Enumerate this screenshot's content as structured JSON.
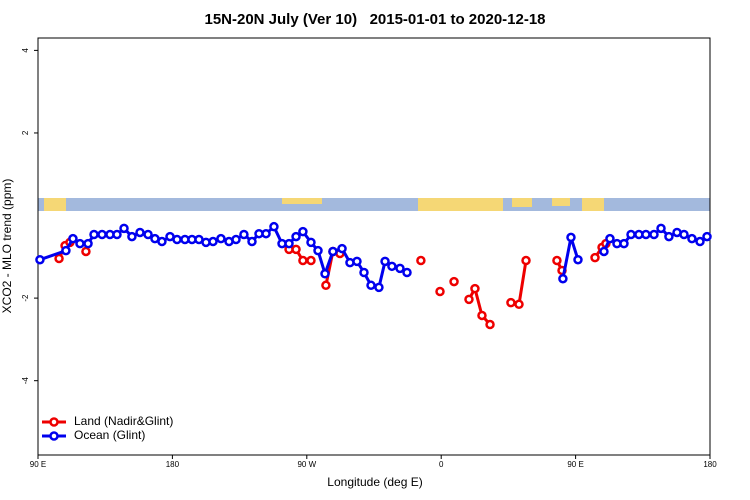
{
  "chart_data": {
    "type": "line",
    "title": "15N-20N July (Ver 10)   2015-01-01 to 2020-12-18",
    "xlabel": "Longitude (deg E)",
    "ylabel": "XCO2 - MLO trend (ppm)",
    "xlim": [
      90,
      540
    ],
    "xticks": [
      {
        "value": 90,
        "label": "90 E"
      },
      {
        "value": 180,
        "label": "180"
      },
      {
        "value": 270,
        "label": "90 W"
      },
      {
        "value": 360,
        "label": "0"
      },
      {
        "value": 450,
        "label": "90 E"
      },
      {
        "value": 540,
        "label": "180"
      }
    ],
    "ylim": [
      -5.8,
      4.3
    ],
    "yticks": [
      -4,
      -2,
      2,
      4
    ],
    "legend": "bottom-left",
    "series": [
      {
        "name": "Land (Nadir&Glint)",
        "color": "#ee0000",
        "x": [
          104.1,
          108.1,
          111.4,
          null,
          122.1,
          null,
          258.1,
          262.8,
          267.4,
          272.8,
          null,
          282.8,
          287.5,
          292.2,
          null,
          346.4,
          null,
          359.2,
          null,
          368.6,
          null,
          378.6,
          382.6,
          387.3,
          392.7,
          null,
          406.7,
          412.1,
          416.8,
          null,
          437.5,
          440.9,
          null,
          463,
          467.7,
          470.3
        ],
        "values": [
          -1.04,
          -0.73,
          -0.65,
          null,
          -0.87,
          null,
          -0.82,
          -0.82,
          -1.09,
          -1.09,
          null,
          -1.69,
          -0.87,
          -0.92,
          null,
          -1.09,
          null,
          -1.84,
          null,
          -1.6,
          null,
          -2.03,
          -1.77,
          -2.42,
          -2.64,
          null,
          -2.11,
          -2.15,
          -1.09,
          null,
          -1.09,
          -1.33,
          null,
          -1.02,
          -0.77,
          -0.68
        ]
      },
      {
        "name": "Ocean (Glint)",
        "color": "#0000ee",
        "x": [
          91.3,
          108.7,
          113.4,
          118.1,
          123.5,
          127.5,
          132.9,
          138.2,
          142.9,
          147.6,
          152.9,
          158.3,
          163.7,
          168.3,
          173,
          178.4,
          183.1,
          188.4,
          193.1,
          197.8,
          202.5,
          207.2,
          212.5,
          217.9,
          222.6,
          227.9,
          233.3,
          238,
          242.7,
          248,
          253.4,
          258.1,
          262.8,
          267.4,
          272.8,
          277.5,
          282.2,
          287.5,
          293.6,
          298.9,
          303.6,
          308.3,
          313,
          318.3,
          322.4,
          327,
          332.4,
          337.1,
          null,
          441.5,
          446.9,
          451.6,
          null,
          469,
          473,
          477.7,
          482.4,
          487.1,
          492.4,
          497.1,
          502.5,
          507.2,
          512.5,
          517.9,
          522.6,
          527.9,
          533.3,
          538
        ],
        "values": [
          -1.07,
          -0.85,
          -0.56,
          -0.68,
          -0.68,
          -0.46,
          -0.46,
          -0.46,
          -0.46,
          -0.31,
          -0.51,
          -0.41,
          -0.46,
          -0.56,
          -0.63,
          -0.51,
          -0.58,
          -0.58,
          -0.58,
          -0.58,
          -0.65,
          -0.63,
          -0.56,
          -0.63,
          -0.58,
          -0.46,
          -0.63,
          -0.44,
          -0.44,
          -0.27,
          -0.68,
          -0.68,
          -0.51,
          -0.39,
          -0.65,
          -0.85,
          -1.41,
          -0.87,
          -0.8,
          -1.14,
          -1.11,
          -1.38,
          -1.69,
          -1.74,
          -1.11,
          -1.23,
          -1.28,
          -1.38,
          null,
          -1.53,
          -0.53,
          -1.07,
          null,
          -0.87,
          -0.56,
          -0.68,
          -0.68,
          -0.46,
          -0.46,
          -0.46,
          -0.46,
          -0.31,
          -0.51,
          -0.41,
          -0.46,
          -0.56,
          -0.63,
          -0.51
        ]
      }
    ]
  }
}
